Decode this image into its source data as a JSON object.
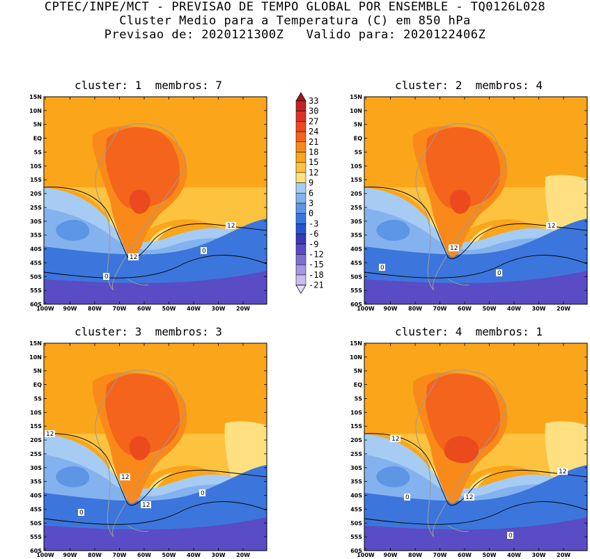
{
  "header": {
    "line1": "CPTEC/INPE/MCT - PREVISAO DE TEMPO GLOBAL POR ENSEMBLE - TQ0126L028",
    "line2": "Cluster Medio para a Temperatura (C) em 850 hPa",
    "line3": "Previsao de: 2020121300Z   Valido para: 2020122406Z"
  },
  "panels": [
    {
      "title": "cluster: 1  membros: 7",
      "contour_labels": [
        "12",
        "12",
        "0",
        "0"
      ]
    },
    {
      "title": "cluster: 2  membros: 4",
      "contour_labels": [
        "12",
        "12",
        "0",
        "0"
      ]
    },
    {
      "title": "cluster: 3  membros: 3",
      "contour_labels": [
        "12",
        "12",
        "12",
        "0",
        "0"
      ]
    },
    {
      "title": "cluster: 4  membros: 1",
      "contour_labels": [
        "12",
        "12",
        "12",
        "0",
        "0"
      ]
    }
  ],
  "lat_ticks": [
    "15N",
    "10N",
    "5N",
    "EQ",
    "5S",
    "10S",
    "15S",
    "20S",
    "25S",
    "30S",
    "35S",
    "40S",
    "45S",
    "50S",
    "55S",
    "60S"
  ],
  "lon_ticks": [
    "100W",
    "90W",
    "80W",
    "70W",
    "60W",
    "50W",
    "40W",
    "30W",
    "20W"
  ],
  "colorbar": {
    "labels": [
      "33",
      "30",
      "27",
      "24",
      "21",
      "18",
      "15",
      "12",
      "9",
      "6",
      "3",
      "0",
      "-3",
      "-6",
      "-9",
      "-12",
      "-15",
      "-18",
      "-21"
    ],
    "colors": [
      "#a01818",
      "#c02424",
      "#dc3228",
      "#ea4a1e",
      "#f4641c",
      "#f98a1a",
      "#fba51a",
      "#fdc23e",
      "#fee080",
      "#a6ccf4",
      "#84b2ee",
      "#5e96e6",
      "#3c76dc",
      "#2656cc",
      "#3a38b4",
      "#5a4cc4",
      "#7e70d2",
      "#a496e0",
      "#c8bcee",
      "#e4dcf6"
    ]
  },
  "colors": {
    "warm_outer": "#fba51a",
    "warm_mid": "#f98a1a",
    "hot": "#f4641c",
    "hotter": "#ea4a1e",
    "mild": "#fdc23e",
    "pale": "#fee080",
    "cool1": "#a6ccf4",
    "cool2": "#84b2ee",
    "cool3": "#5e96e6",
    "cold1": "#3c76dc",
    "cold2": "#2656cc",
    "cold3": "#5a4cc4"
  }
}
